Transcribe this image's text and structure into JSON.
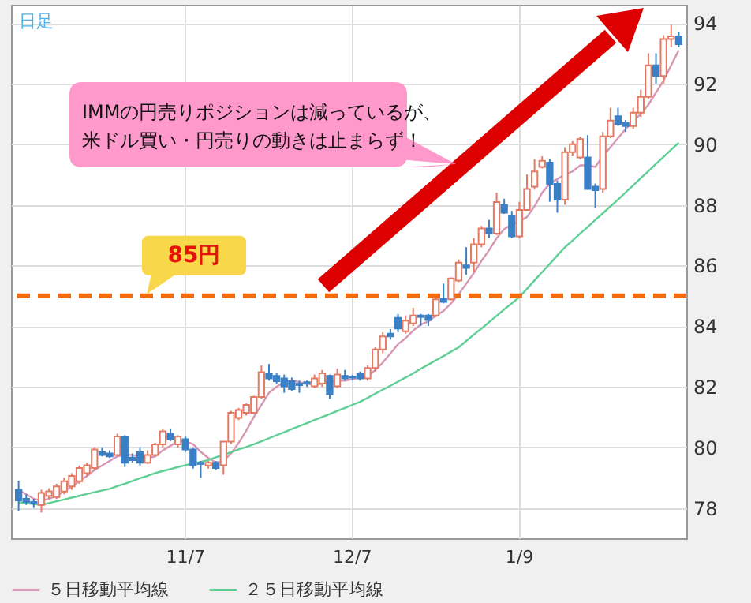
{
  "chart_data": {
    "type": "candlestick",
    "annotations": [
      "日足",
      "IMMの円売りポジションは減っているが、米ドル買い・円売りの動きは止まらず！"
    ],
    "categories": [
      null,
      null,
      null,
      null,
      null,
      null,
      null,
      null,
      null,
      null,
      null,
      null,
      null,
      null,
      null,
      null,
      null,
      null,
      null,
      null,
      null,
      null,
      "11/7",
      null,
      null,
      null,
      null,
      null,
      null,
      null,
      null,
      null,
      null,
      null,
      null,
      null,
      null,
      null,
      null,
      null,
      null,
      null,
      null,
      null,
      "12/7",
      null,
      null,
      null,
      null,
      null,
      null,
      null,
      null,
      null,
      null,
      null,
      null,
      null,
      null,
      null,
      null,
      null,
      null,
      null,
      null,
      null,
      "1/9",
      null,
      null,
      null,
      null,
      null,
      null,
      null,
      null,
      null,
      null,
      null,
      null,
      null,
      null,
      null,
      null,
      null,
      null,
      null,
      null,
      null
    ],
    "ohlc": [
      [
        78.6,
        78.9,
        77.9,
        78.25
      ],
      [
        78.3,
        78.45,
        78.1,
        78.2
      ],
      [
        78.2,
        78.3,
        78.0,
        78.15
      ],
      [
        78.1,
        78.6,
        77.85,
        78.5
      ],
      [
        78.4,
        78.65,
        78.3,
        78.55
      ],
      [
        78.36,
        78.8,
        78.3,
        78.71
      ],
      [
        78.54,
        79.0,
        78.45,
        78.88
      ],
      [
        78.71,
        79.15,
        78.6,
        79.06
      ],
      [
        78.88,
        79.4,
        78.8,
        79.32
      ],
      [
        79.15,
        79.5,
        79.05,
        79.41
      ],
      [
        79.32,
        80.0,
        79.25,
        79.93
      ],
      [
        79.84,
        80.0,
        79.7,
        79.75
      ],
      [
        79.8,
        79.9,
        79.65,
        79.7
      ],
      [
        79.75,
        80.45,
        79.7,
        80.36
      ],
      [
        80.36,
        80.4,
        79.35,
        79.49
      ],
      [
        79.66,
        79.8,
        79.5,
        79.58
      ],
      [
        79.84,
        80.0,
        79.4,
        79.49
      ],
      [
        79.49,
        79.9,
        79.45,
        79.75
      ],
      [
        79.75,
        80.15,
        79.7,
        80.1
      ],
      [
        80.1,
        80.6,
        80.0,
        80.53
      ],
      [
        80.45,
        80.6,
        80.2,
        80.27
      ],
      [
        80.1,
        80.4,
        80.0,
        80.36
      ],
      [
        80.27,
        80.35,
        79.85,
        79.93
      ],
      [
        79.93,
        80.0,
        79.3,
        79.41
      ],
      [
        79.49,
        79.55,
        79.0,
        79.45
      ],
      [
        79.4,
        79.55,
        79.3,
        79.49
      ],
      [
        79.49,
        79.55,
        79.25,
        79.32
      ],
      [
        79.41,
        80.2,
        79.1,
        80.19
      ],
      [
        80.19,
        81.2,
        80.1,
        81.14
      ],
      [
        80.97,
        81.3,
        80.9,
        81.23
      ],
      [
        81.14,
        81.45,
        81.05,
        81.4
      ],
      [
        81.14,
        81.7,
        81.1,
        81.66
      ],
      [
        81.66,
        82.7,
        81.6,
        82.48
      ],
      [
        82.44,
        82.75,
        82.2,
        82.27
      ],
      [
        82.36,
        82.45,
        82.1,
        82.18
      ],
      [
        82.27,
        82.4,
        81.8,
        82.01
      ],
      [
        82.18,
        82.3,
        81.85,
        81.92
      ],
      [
        82.1,
        82.2,
        81.8,
        82.05
      ],
      [
        82.15,
        82.2,
        82.0,
        82.1
      ],
      [
        82.01,
        82.4,
        81.95,
        82.27
      ],
      [
        82.1,
        82.55,
        82.0,
        82.44
      ],
      [
        82.36,
        82.4,
        81.6,
        81.75
      ],
      [
        82.01,
        82.6,
        81.95,
        82.4
      ],
      [
        82.36,
        82.55,
        82.2,
        82.27
      ],
      [
        82.33,
        82.4,
        82.2,
        82.3
      ],
      [
        82.44,
        82.5,
        82.2,
        82.27
      ],
      [
        82.27,
        82.7,
        82.2,
        82.62
      ],
      [
        82.62,
        83.3,
        82.5,
        83.23
      ],
      [
        83.23,
        83.8,
        83.1,
        83.66
      ],
      [
        83.75,
        83.9,
        83.55,
        83.66
      ],
      [
        84.27,
        84.4,
        83.8,
        83.92
      ],
      [
        83.83,
        84.35,
        83.75,
        84.18
      ],
      [
        84.09,
        84.6,
        84.0,
        84.35
      ],
      [
        84.35,
        84.4,
        84.0,
        84.3
      ],
      [
        84.35,
        84.4,
        84.0,
        84.2
      ],
      [
        84.35,
        84.95,
        84.3,
        84.88
      ],
      [
        84.9,
        85.4,
        84.75,
        84.8
      ],
      [
        84.88,
        85.6,
        84.85,
        85.57
      ],
      [
        85.5,
        86.2,
        85.45,
        86.09
      ],
      [
        86.0,
        86.6,
        85.7,
        85.92
      ],
      [
        86.09,
        86.9,
        85.8,
        86.7
      ],
      [
        86.7,
        87.3,
        86.6,
        87.22
      ],
      [
        87.22,
        87.5,
        86.9,
        87.05
      ],
      [
        87.05,
        88.4,
        87.0,
        88.09
      ],
      [
        88.0,
        88.2,
        87.7,
        87.74
      ],
      [
        87.65,
        87.8,
        86.9,
        86.96
      ],
      [
        86.96,
        88.1,
        86.9,
        87.83
      ],
      [
        87.83,
        89.0,
        87.8,
        88.52
      ],
      [
        88.6,
        89.5,
        88.5,
        89.1
      ],
      [
        89.25,
        89.6,
        89.2,
        89.45
      ],
      [
        89.39,
        89.5,
        88.1,
        88.69
      ],
      [
        88.69,
        88.8,
        87.74,
        88.17
      ],
      [
        88.17,
        89.9,
        88.0,
        89.74
      ],
      [
        89.74,
        90.1,
        89.6,
        90.0
      ],
      [
        89.56,
        90.25,
        89.5,
        90.17
      ],
      [
        89.56,
        90.3,
        88.5,
        88.52
      ],
      [
        88.6,
        88.7,
        87.9,
        88.48
      ],
      [
        88.52,
        90.4,
        88.4,
        90.26
      ],
      [
        90.26,
        91.2,
        90.2,
        90.78
      ],
      [
        90.92,
        91.2,
        90.6,
        90.66
      ],
      [
        90.7,
        90.8,
        90.4,
        90.6
      ],
      [
        90.6,
        91.2,
        90.5,
        91.04
      ],
      [
        91.04,
        91.8,
        90.9,
        91.56
      ],
      [
        91.56,
        93.0,
        91.5,
        92.6
      ],
      [
        92.6,
        93.0,
        92.0,
        92.25
      ],
      [
        92.25,
        93.6,
        92.0,
        93.47
      ],
      [
        93.47,
        93.94,
        93.2,
        93.56
      ],
      [
        93.56,
        93.7,
        93.2,
        93.3
      ]
    ],
    "colors": [
      "#3b7fc4",
      "#3b7fc4",
      "#3b7fc4",
      "#e57a64",
      "#e57a64",
      "#e57a64",
      "#e57a64",
      "#e57a64",
      "#e57a64",
      "#e57a64",
      "#e57a64",
      "#3b7fc4",
      "#3b7fc4",
      "#e57a64",
      "#3b7fc4",
      "#3b7fc4",
      "#3b7fc4",
      "#e57a64",
      "#e57a64",
      "#e57a64",
      "#3b7fc4",
      "#e57a64",
      "#3b7fc4",
      "#3b7fc4",
      "#3b7fc4",
      "#e57a64",
      "#3b7fc4",
      "#e57a64",
      "#e57a64",
      "#e57a64",
      "#e57a64",
      "#e57a64",
      "#e57a64",
      "#3b7fc4",
      "#3b7fc4",
      "#3b7fc4",
      "#3b7fc4",
      "#3b7fc4",
      "#3b7fc4",
      "#e57a64",
      "#e57a64",
      "#3b7fc4",
      "#e57a64",
      "#3b7fc4",
      "#3b7fc4",
      "#3b7fc4",
      "#e57a64",
      "#e57a64",
      "#e57a64",
      "#3b7fc4",
      "#3b7fc4",
      "#e57a64",
      "#e57a64",
      "#3b7fc4",
      "#3b7fc4",
      "#e57a64",
      "#3b7fc4",
      "#e57a64",
      "#e57a64",
      "#3b7fc4",
      "#e57a64",
      "#e57a64",
      "#3b7fc4",
      "#e57a64",
      "#3b7fc4",
      "#3b7fc4",
      "#e57a64",
      "#e57a64",
      "#e57a64",
      "#e57a64",
      "#3b7fc4",
      "#3b7fc4",
      "#e57a64",
      "#e57a64",
      "#e57a64",
      "#3b7fc4",
      "#3b7fc4",
      "#e57a64",
      "#e57a64",
      "#3b7fc4",
      "#3b7fc4",
      "#e57a64",
      "#e57a64",
      "#e57a64",
      "#3b7fc4",
      "#e57a64",
      "#e57a64",
      "#3b7fc4"
    ],
    "series": [
      {
        "name": "５日移動平均線",
        "type": "line",
        "color": "#d696b4",
        "values": [
          78.6,
          78.45,
          78.3,
          78.25,
          78.3,
          78.4,
          78.55,
          78.7,
          78.9,
          79.05,
          79.25,
          79.4,
          79.55,
          79.7,
          79.75,
          79.75,
          79.7,
          79.65,
          79.7,
          79.9,
          80.05,
          80.2,
          80.2,
          80.1,
          79.85,
          79.65,
          79.5,
          79.55,
          79.8,
          80.15,
          80.55,
          81.0,
          81.4,
          81.8,
          82.0,
          82.15,
          82.2,
          82.15,
          82.1,
          82.05,
          82.1,
          82.15,
          82.2,
          82.2,
          82.25,
          82.3,
          82.35,
          82.55,
          82.8,
          83.1,
          83.4,
          83.6,
          83.85,
          84.05,
          84.15,
          84.35,
          84.5,
          84.75,
          85.05,
          85.4,
          85.75,
          86.15,
          86.5,
          86.9,
          87.2,
          87.35,
          87.45,
          87.6,
          87.95,
          88.4,
          88.7,
          88.85,
          89.0,
          89.1,
          89.3,
          89.3,
          89.25,
          89.6,
          89.9,
          90.2,
          90.5,
          90.75,
          91.0,
          91.3,
          91.7,
          92.1,
          92.6,
          93.1
        ]
      },
      {
        "name": "２５日移動平均線",
        "type": "line",
        "color": "#5fcf95",
        "values": [
          78.19,
          78.16,
          78.13,
          78.1,
          78.16,
          78.22,
          78.28,
          78.34,
          78.4,
          78.46,
          78.52,
          78.58,
          78.63,
          78.72,
          78.8,
          78.89,
          78.98,
          79.06,
          79.15,
          79.22,
          79.28,
          79.35,
          79.41,
          79.47,
          79.52,
          79.58,
          79.67,
          79.75,
          79.84,
          79.93,
          80.01,
          80.1,
          80.2,
          80.3,
          80.4,
          80.5,
          80.6,
          80.7,
          80.8,
          80.9,
          81.0,
          81.1,
          81.2,
          81.3,
          81.4,
          81.5,
          81.63,
          81.77,
          81.9,
          82.03,
          82.17,
          82.3,
          82.44,
          82.59,
          82.73,
          82.87,
          83.01,
          83.16,
          83.3,
          83.51,
          83.72,
          83.92,
          84.13,
          84.34,
          84.55,
          84.75,
          84.96,
          85.23,
          85.51,
          85.78,
          86.05,
          86.33,
          86.6,
          86.82,
          87.05,
          87.27,
          87.5,
          87.72,
          87.95,
          88.17,
          88.41,
          88.64,
          88.88,
          89.11,
          89.35,
          89.58,
          89.82,
          90.05
        ]
      }
    ],
    "ylim": [
      77,
      94.6
    ],
    "yticks": [
      78,
      80,
      82,
      84,
      86,
      88,
      90,
      92,
      94
    ],
    "grid": true,
    "legend": "bottom left",
    "ref_lines": [
      {
        "axis": "y",
        "value": 85,
        "label": "85円",
        "color": "#f26b0f",
        "line_style": "dashed"
      }
    ]
  }
}
